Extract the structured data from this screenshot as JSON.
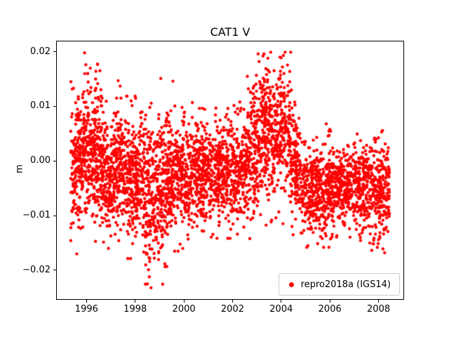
{
  "figure": {
    "background": "#ffffff",
    "text_color": "#000000"
  },
  "chart_data": {
    "type": "scatter",
    "title": "CAT1 V",
    "xlabel": "",
    "ylabel": "m",
    "xlim": [
      1994.75,
      2009.05
    ],
    "ylim": [
      -0.0254,
      0.022
    ],
    "grid": false,
    "xticks": {
      "values": [
        1996,
        1998,
        2000,
        2002,
        2004,
        2006,
        2008
      ],
      "labels": [
        "1996",
        "1998",
        "2000",
        "2002",
        "2004",
        "2006",
        "2008"
      ]
    },
    "yticks": {
      "values": [
        0.02,
        0.01,
        0.0,
        -0.01,
        -0.02
      ],
      "labels": [
        "0.02",
        "0.01",
        "0.00",
        "−0.01",
        "−0.02"
      ]
    },
    "legend": {
      "position": "lower right",
      "entries": [
        {
          "label": "repro2018a (IGS14)",
          "color": "#ff0000",
          "marker": "circle"
        }
      ]
    },
    "series": [
      {
        "name": "repro2018a (IGS14)",
        "color": "#ff0000",
        "marker": "circle",
        "marker_radius_px": 2.2,
        "render_seed": 7,
        "clip_y": [
          -0.0233,
          0.0199
        ],
        "cluster_segments": [
          {
            "x_start": 1995.35,
            "x_end": 1996.0,
            "mean": 0.0005,
            "std": 0.006,
            "n": 240
          },
          {
            "x_start": 1996.0,
            "x_end": 1996.6,
            "mean": 0.0015,
            "std": 0.006,
            "n": 230
          },
          {
            "x_start": 1996.6,
            "x_end": 1997.6,
            "mean": -0.002,
            "std": 0.005,
            "n": 360
          },
          {
            "x_start": 1997.6,
            "x_end": 1998.3,
            "mean": -0.003,
            "std": 0.0055,
            "n": 250
          },
          {
            "x_start": 1998.3,
            "x_end": 1999.3,
            "mean": -0.005,
            "std": 0.0065,
            "n": 340
          },
          {
            "x_start": 1999.3,
            "x_end": 2000.2,
            "mean": -0.003,
            "std": 0.005,
            "n": 310
          },
          {
            "x_start": 2000.2,
            "x_end": 2001.2,
            "mean": -0.0025,
            "std": 0.0045,
            "n": 340
          },
          {
            "x_start": 2001.2,
            "x_end": 2002.6,
            "mean": -0.002,
            "std": 0.0045,
            "n": 460
          },
          {
            "x_start": 2002.6,
            "x_end": 2003.1,
            "mean": 0.002,
            "std": 0.006,
            "n": 170
          },
          {
            "x_start": 2003.1,
            "x_end": 2004.4,
            "mean": 0.005,
            "std": 0.0062,
            "n": 450
          },
          {
            "x_start": 2004.4,
            "x_end": 2004.8,
            "mean": 0.0,
            "std": 0.005,
            "n": 130
          },
          {
            "x_start": 2004.8,
            "x_end": 2006.1,
            "mean": -0.005,
            "std": 0.004,
            "n": 400
          },
          {
            "x_start": 2006.1,
            "x_end": 2007.2,
            "mean": -0.0045,
            "std": 0.0035,
            "n": 330
          },
          {
            "x_start": 2007.2,
            "x_end": 2008.45,
            "mean": -0.005,
            "std": 0.0042,
            "n": 380
          }
        ],
        "notable_points": [
          [
            1995.6,
            -0.017
          ],
          [
            1995.92,
            0.0198
          ],
          [
            1995.97,
            0.0176
          ],
          [
            1996.05,
            0.016
          ],
          [
            1996.55,
            0.0165
          ],
          [
            1996.9,
            -0.016
          ],
          [
            1997.3,
            0.0147
          ],
          [
            1997.38,
            0.0137
          ],
          [
            1998.5,
            -0.0225
          ],
          [
            1998.65,
            -0.0232
          ],
          [
            1999.05,
            0.0151
          ],
          [
            1999.3,
            -0.0193
          ],
          [
            1999.55,
            0.0146
          ],
          [
            2000.35,
            0.0107
          ],
          [
            2002.3,
            0.0108
          ],
          [
            2003.05,
            0.0196
          ],
          [
            2003.25,
            0.0192
          ],
          [
            2003.45,
            0.0188
          ],
          [
            2003.95,
            0.019
          ],
          [
            2004.05,
            0.0172
          ],
          [
            2005.1,
            -0.0155
          ],
          [
            2005.85,
            0.0068
          ],
          [
            2007.95,
            -0.0158
          ],
          [
            2008.25,
            -0.0168
          ]
        ]
      }
    ]
  }
}
